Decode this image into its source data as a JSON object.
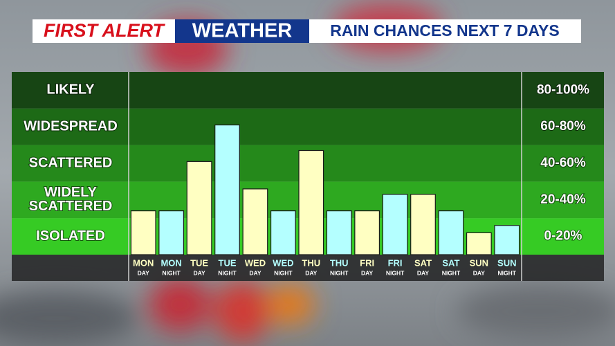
{
  "chart_data": {
    "type": "bar",
    "title_parts": [
      "FIRST ALERT",
      "WEATHER",
      "RAIN CHANCES NEXT 7 DAYS"
    ],
    "categories": [
      {
        "day": "MON",
        "part": "DAY"
      },
      {
        "day": "MON",
        "part": "NIGHT"
      },
      {
        "day": "TUE",
        "part": "DAY"
      },
      {
        "day": "TUE",
        "part": "NIGHT"
      },
      {
        "day": "WED",
        "part": "DAY"
      },
      {
        "day": "WED",
        "part": "NIGHT"
      },
      {
        "day": "THU",
        "part": "DAY"
      },
      {
        "day": "THU",
        "part": "NIGHT"
      },
      {
        "day": "FRI",
        "part": "DAY"
      },
      {
        "day": "FRI",
        "part": "NIGHT"
      },
      {
        "day": "SAT",
        "part": "DAY"
      },
      {
        "day": "SAT",
        "part": "NIGHT"
      },
      {
        "day": "SUN",
        "part": "DAY"
      },
      {
        "day": "SUN",
        "part": "NIGHT"
      }
    ],
    "values": [
      24,
      24,
      51,
      71,
      36,
      24,
      57,
      24,
      24,
      33,
      33,
      24,
      12,
      16
    ],
    "colors": [
      "#ffffc2",
      "#b4ffff",
      "#ffffc2",
      "#b4ffff",
      "#ffffc2",
      "#b4ffff",
      "#ffffc2",
      "#b4ffff",
      "#ffffc2",
      "#b4ffff",
      "#ffffc2",
      "#b4ffff",
      "#ffffc2",
      "#b4ffff"
    ],
    "ylim": [
      0,
      100
    ],
    "bands": [
      {
        "label": [
          "LIKELY"
        ],
        "range": "80-100%",
        "from": 80,
        "to": 100,
        "color": "#174514"
      },
      {
        "label": [
          "WIDESPREAD"
        ],
        "range": "60-80%",
        "from": 60,
        "to": 80,
        "color": "#1d6a16"
      },
      {
        "label": [
          "SCATTERED"
        ],
        "range": "40-60%",
        "from": 40,
        "to": 60,
        "color": "#25891b"
      },
      {
        "label": [
          "WIDELY",
          "SCATTERED"
        ],
        "range": "20-40%",
        "from": 20,
        "to": 40,
        "color": "#2ea920"
      },
      {
        "label": [
          "ISOLATED"
        ],
        "range": "0-20%",
        "from": 0,
        "to": 20,
        "color": "#36cb24"
      }
    ]
  }
}
